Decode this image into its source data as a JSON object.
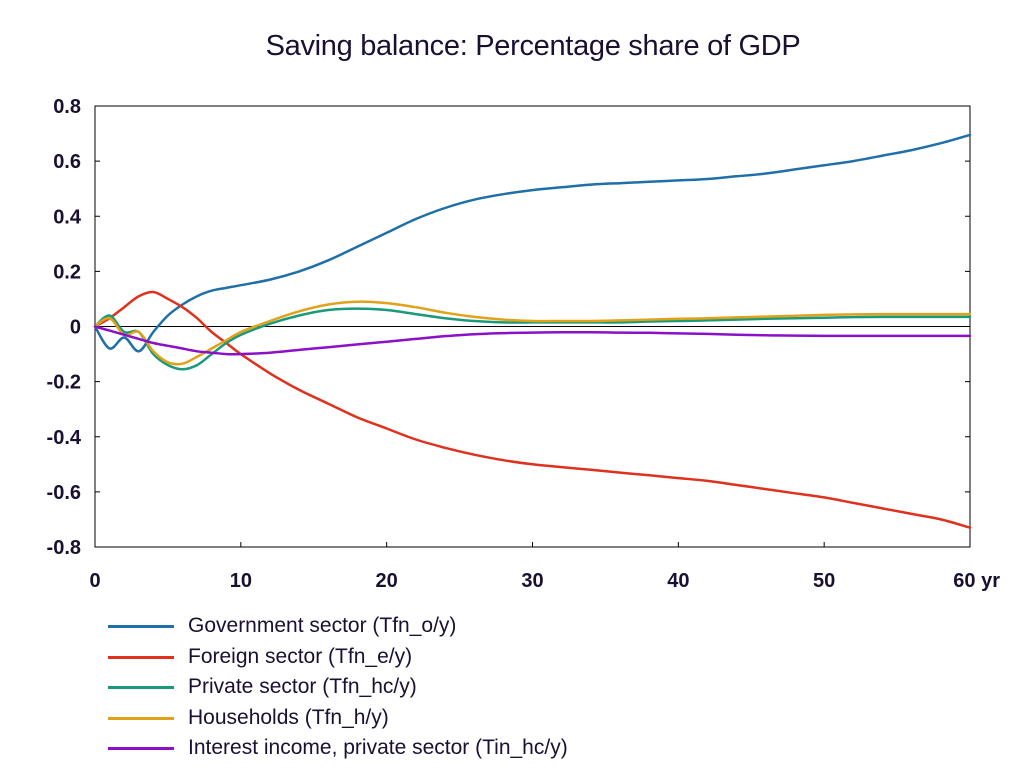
{
  "chart_data": {
    "type": "line",
    "title": "Saving balance: Percentage share of GDP",
    "xlabel": "",
    "ylabel": "",
    "x_unit_label": "yr",
    "xlim": [
      0,
      60
    ],
    "ylim": [
      -0.8,
      0.8
    ],
    "x_ticks": [
      0,
      10,
      20,
      30,
      40,
      50,
      60
    ],
    "x_tick_labels": [
      "0",
      "10",
      "20",
      "30",
      "40",
      "50",
      "60 yr"
    ],
    "y_ticks": [
      0.8,
      0.6,
      0.4,
      0.2,
      0,
      -0.2,
      -0.4,
      -0.6,
      -0.8
    ],
    "y_tick_labels": [
      "0.8",
      "0.6",
      "0.4",
      "0.2",
      "0",
      "-0.2",
      "-0.4",
      "-0.6",
      "-0.8"
    ],
    "grid": false,
    "zero_line": true,
    "legend_position": "bottom",
    "x": [
      0,
      1,
      2,
      3,
      4,
      5,
      6,
      7,
      8,
      9,
      10,
      12,
      14,
      16,
      18,
      20,
      22,
      24,
      26,
      28,
      30,
      32,
      34,
      36,
      38,
      40,
      42,
      44,
      46,
      48,
      50,
      52,
      54,
      56,
      58,
      60
    ],
    "series": [
      {
        "name": "Government sector (Tfn_o/y)",
        "color": "#1f6fa8",
        "values": [
          0,
          -0.08,
          -0.04,
          -0.09,
          -0.02,
          0.04,
          0.08,
          0.11,
          0.13,
          0.14,
          0.15,
          0.17,
          0.2,
          0.24,
          0.29,
          0.34,
          0.39,
          0.43,
          0.46,
          0.48,
          0.495,
          0.505,
          0.515,
          0.52,
          0.525,
          0.53,
          0.535,
          0.545,
          0.555,
          0.57,
          0.585,
          0.6,
          0.62,
          0.64,
          0.665,
          0.695
        ]
      },
      {
        "name": "Foreign sector (Tfn_e/y)",
        "color": "#e0301e",
        "values": [
          0,
          0.03,
          0.07,
          0.11,
          0.125,
          0.1,
          0.07,
          0.03,
          -0.02,
          -0.06,
          -0.1,
          -0.17,
          -0.23,
          -0.28,
          -0.33,
          -0.37,
          -0.41,
          -0.44,
          -0.465,
          -0.485,
          -0.5,
          -0.51,
          -0.52,
          -0.53,
          -0.54,
          -0.55,
          -0.56,
          -0.575,
          -0.59,
          -0.605,
          -0.62,
          -0.64,
          -0.66,
          -0.68,
          -0.7,
          -0.73
        ]
      },
      {
        "name": "Private sector (Tfn_hc/y)",
        "color": "#1a9a7a",
        "values": [
          0,
          0.04,
          -0.02,
          -0.02,
          -0.1,
          -0.14,
          -0.155,
          -0.14,
          -0.1,
          -0.06,
          -0.03,
          0.01,
          0.04,
          0.06,
          0.065,
          0.06,
          0.045,
          0.03,
          0.02,
          0.015,
          0.015,
          0.015,
          0.015,
          0.015,
          0.018,
          0.02,
          0.022,
          0.025,
          0.028,
          0.03,
          0.032,
          0.034,
          0.035,
          0.035,
          0.035,
          0.035
        ]
      },
      {
        "name": "Households (Tfn_h/y)",
        "color": "#e0a21a",
        "values": [
          0,
          0.03,
          -0.03,
          -0.02,
          -0.09,
          -0.13,
          -0.135,
          -0.11,
          -0.08,
          -0.05,
          -0.02,
          0.02,
          0.055,
          0.08,
          0.09,
          0.085,
          0.07,
          0.05,
          0.035,
          0.025,
          0.02,
          0.02,
          0.02,
          0.022,
          0.025,
          0.028,
          0.03,
          0.033,
          0.036,
          0.039,
          0.042,
          0.044,
          0.045,
          0.045,
          0.045,
          0.045
        ]
      },
      {
        "name": "Interest income, private sector (Tin_hc/y)",
        "color": "#8b10c8",
        "values": [
          0,
          -0.015,
          -0.03,
          -0.045,
          -0.06,
          -0.07,
          -0.08,
          -0.09,
          -0.095,
          -0.1,
          -0.1,
          -0.095,
          -0.085,
          -0.075,
          -0.065,
          -0.055,
          -0.045,
          -0.035,
          -0.028,
          -0.024,
          -0.022,
          -0.021,
          -0.021,
          -0.022,
          -0.023,
          -0.025,
          -0.027,
          -0.03,
          -0.032,
          -0.033,
          -0.034,
          -0.034,
          -0.034,
          -0.034,
          -0.034,
          -0.034
        ]
      }
    ]
  }
}
